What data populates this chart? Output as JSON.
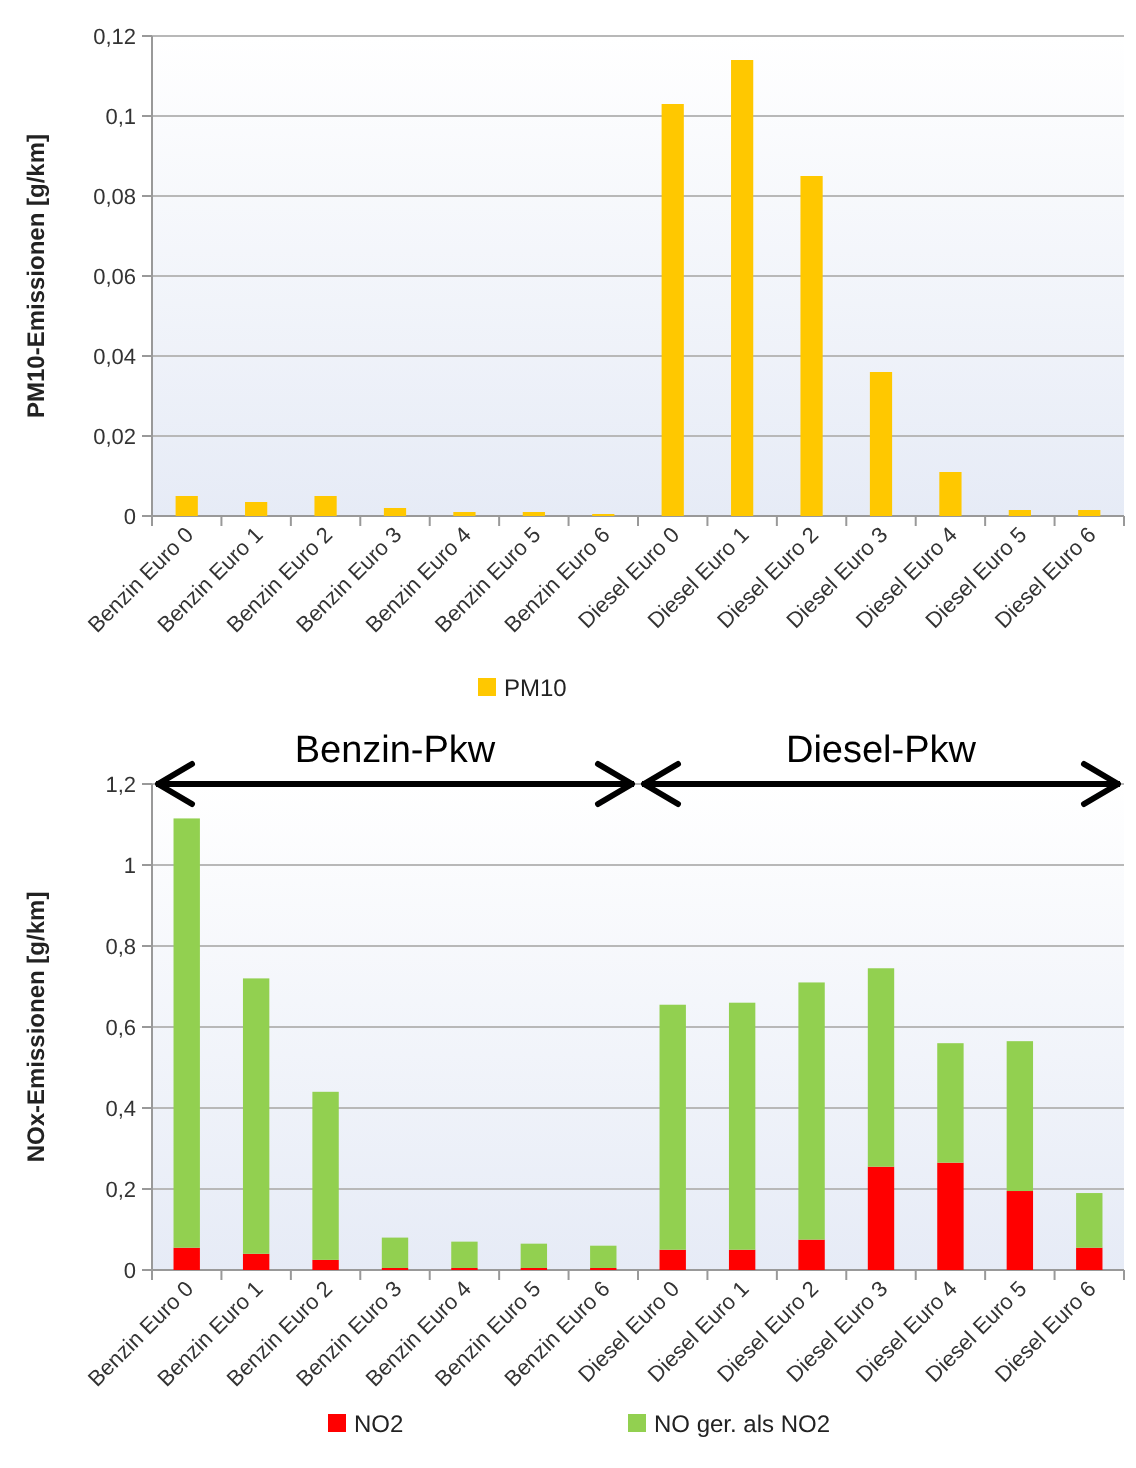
{
  "chart_data": [
    {
      "type": "bar",
      "ylabel": "PM10-Emissionen [g/km]",
      "categories": [
        "Benzin Euro 0",
        "Benzin Euro 1",
        "Benzin Euro 2",
        "Benzin Euro 3",
        "Benzin Euro 4",
        "Benzin Euro 5",
        "Benzin Euro 6",
        "Diesel Euro 0",
        "Diesel Euro 1",
        "Diesel Euro 2",
        "Diesel Euro 3",
        "Diesel Euro 4",
        "Diesel Euro 5",
        "Diesel Euro 6"
      ],
      "series": [
        {
          "name": "PM10",
          "color": "#ffc800",
          "values": [
            0.005,
            0.0035,
            0.005,
            0.002,
            0.001,
            0.001,
            0.0005,
            0.103,
            0.114,
            0.085,
            0.036,
            0.011,
            0.0015,
            0.0015
          ]
        }
      ],
      "ylim": [
        0,
        0.12
      ],
      "yticks": [
        {
          "value": 0,
          "label": "0"
        },
        {
          "value": 0.02,
          "label": "0,02"
        },
        {
          "value": 0.04,
          "label": "0,04"
        },
        {
          "value": 0.06,
          "label": "0,06"
        },
        {
          "value": 0.08,
          "label": "0,08"
        },
        {
          "value": 0.1,
          "label": "0,1"
        },
        {
          "value": 0.12,
          "label": "0,12"
        }
      ],
      "grid": "y",
      "legend": "bottom"
    },
    {
      "type": "bar",
      "stacked": true,
      "ylabel": "NOx-Emissionen [g/km]",
      "categories": [
        "Benzin Euro 0",
        "Benzin Euro 1",
        "Benzin Euro 2",
        "Benzin Euro 3",
        "Benzin Euro 4",
        "Benzin Euro 5",
        "Benzin Euro 6",
        "Diesel Euro 0",
        "Diesel Euro 1",
        "Diesel Euro 2",
        "Diesel Euro 3",
        "Diesel Euro 4",
        "Diesel Euro 5",
        "Diesel Euro 6"
      ],
      "series": [
        {
          "name": "NO2",
          "color": "#ff0000",
          "values": [
            0.055,
            0.04,
            0.025,
            0.005,
            0.005,
            0.005,
            0.005,
            0.05,
            0.05,
            0.075,
            0.255,
            0.265,
            0.195,
            0.055
          ]
        },
        {
          "name": "NO ger. als NO2",
          "color": "#92d050",
          "values": [
            1.06,
            0.68,
            0.415,
            0.075,
            0.065,
            0.06,
            0.055,
            0.605,
            0.61,
            0.635,
            0.49,
            0.295,
            0.37,
            0.135
          ]
        }
      ],
      "ylim": [
        0,
        1.2
      ],
      "yticks": [
        {
          "value": 0,
          "label": "0"
        },
        {
          "value": 0.2,
          "label": "0,2"
        },
        {
          "value": 0.4,
          "label": "0,4"
        },
        {
          "value": 0.6,
          "label": "0,6"
        },
        {
          "value": 0.8,
          "label": "0,8"
        },
        {
          "value": 1,
          "label": "1"
        },
        {
          "value": 1.2,
          "label": "1,2"
        }
      ],
      "grid": "y",
      "legend": "bottom",
      "annotations": [
        "Benzin-Pkw",
        "Diesel-Pkw"
      ]
    }
  ]
}
